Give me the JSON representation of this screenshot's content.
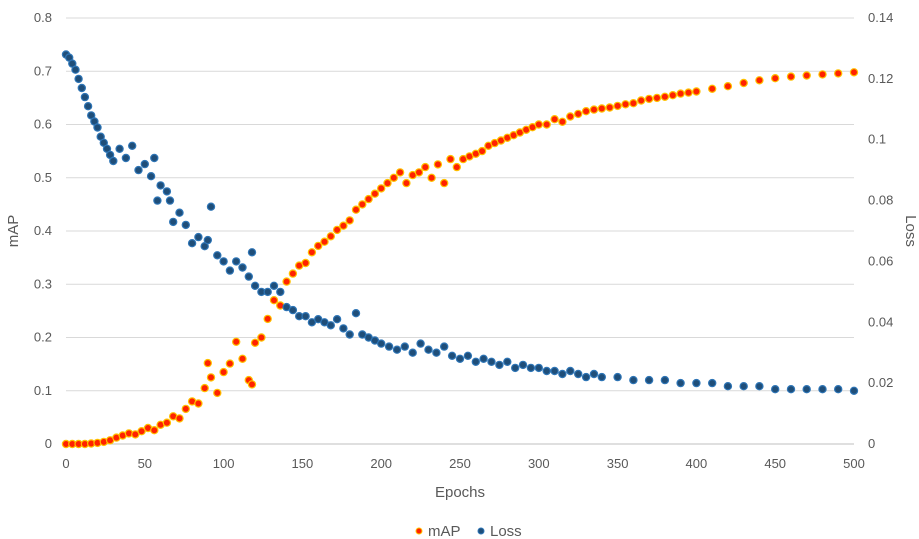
{
  "chart_data": {
    "type": "scatter",
    "xlabel": "Epochs",
    "ylabel_left": "mAP",
    "ylabel_right": "Loss",
    "x_range": [
      0,
      500
    ],
    "y_left_range": [
      0,
      0.8
    ],
    "y_right_range": [
      0,
      0.14
    ],
    "x_ticks": [
      "0",
      "50",
      "100",
      "150",
      "200",
      "250",
      "300",
      "350",
      "400",
      "450",
      "500"
    ],
    "y_left_ticks": [
      "0",
      "0.1",
      "0.2",
      "0.3",
      "0.4",
      "0.5",
      "0.6",
      "0.7",
      "0.8"
    ],
    "y_right_ticks": [
      "0",
      "0.02",
      "0.04",
      "0.06",
      "0.08",
      "0.1",
      "0.12",
      "0.14"
    ],
    "grid": "horizontal",
    "legend_position": "bottom",
    "series": [
      {
        "name": "mAP",
        "axis": "left",
        "fill_color": "#ff2200",
        "stroke_color": "#ffc000",
        "x": [
          0,
          4,
          8,
          12,
          16,
          20,
          24,
          28,
          32,
          36,
          40,
          44,
          48,
          52,
          56,
          60,
          64,
          68,
          72,
          76,
          80,
          84,
          88,
          90,
          92,
          96,
          100,
          104,
          108,
          112,
          116,
          118,
          120,
          124,
          128,
          132,
          136,
          140,
          144,
          148,
          152,
          156,
          160,
          164,
          168,
          172,
          176,
          180,
          184,
          188,
          192,
          196,
          200,
          204,
          208,
          212,
          216,
          220,
          224,
          228,
          232,
          236,
          240,
          244,
          248,
          252,
          256,
          260,
          264,
          268,
          272,
          276,
          280,
          284,
          288,
          292,
          296,
          300,
          305,
          310,
          315,
          320,
          325,
          330,
          335,
          340,
          345,
          350,
          355,
          360,
          365,
          370,
          375,
          380,
          385,
          390,
          395,
          400,
          410,
          420,
          430,
          440,
          450,
          460,
          470,
          480,
          490,
          500
        ],
        "y": [
          0,
          0,
          0,
          0,
          0.001,
          0.002,
          0.004,
          0.007,
          0.012,
          0.016,
          0.02,
          0.018,
          0.024,
          0.03,
          0.026,
          0.036,
          0.04,
          0.052,
          0.048,
          0.066,
          0.08,
          0.076,
          0.105,
          0.152,
          0.125,
          0.096,
          0.135,
          0.151,
          0.192,
          0.16,
          0.12,
          0.112,
          0.19,
          0.2,
          0.235,
          0.27,
          0.26,
          0.305,
          0.32,
          0.335,
          0.34,
          0.36,
          0.372,
          0.38,
          0.39,
          0.402,
          0.41,
          0.42,
          0.44,
          0.45,
          0.46,
          0.47,
          0.48,
          0.49,
          0.5,
          0.51,
          0.49,
          0.505,
          0.51,
          0.52,
          0.5,
          0.525,
          0.49,
          0.535,
          0.52,
          0.535,
          0.54,
          0.545,
          0.55,
          0.56,
          0.565,
          0.57,
          0.575,
          0.58,
          0.585,
          0.59,
          0.595,
          0.6,
          0.6,
          0.61,
          0.605,
          0.615,
          0.62,
          0.625,
          0.628,
          0.63,
          0.632,
          0.635,
          0.638,
          0.64,
          0.645,
          0.648,
          0.65,
          0.652,
          0.655,
          0.658,
          0.66,
          0.662,
          0.667,
          0.672,
          0.678,
          0.683,
          0.687,
          0.69,
          0.692,
          0.694,
          0.696,
          0.698
        ]
      },
      {
        "name": "Loss",
        "axis": "right",
        "fill_color": "#1f4e79",
        "stroke_color": "#2e75b6",
        "x": [
          0,
          2,
          4,
          6,
          8,
          10,
          12,
          14,
          16,
          18,
          20,
          22,
          24,
          26,
          28,
          30,
          34,
          38,
          42,
          46,
          50,
          54,
          56,
          58,
          60,
          64,
          66,
          68,
          72,
          76,
          80,
          84,
          88,
          90,
          92,
          96,
          100,
          104,
          108,
          112,
          116,
          118,
          120,
          124,
          128,
          132,
          136,
          140,
          144,
          148,
          152,
          156,
          160,
          164,
          168,
          172,
          176,
          180,
          184,
          188,
          192,
          196,
          200,
          205,
          210,
          215,
          220,
          225,
          230,
          235,
          240,
          245,
          250,
          255,
          260,
          265,
          270,
          275,
          280,
          285,
          290,
          295,
          300,
          305,
          310,
          315,
          320,
          325,
          330,
          335,
          340,
          350,
          360,
          370,
          380,
          390,
          400,
          410,
          420,
          430,
          440,
          450,
          460,
          470,
          480,
          490,
          500
        ],
        "y": [
          0.128,
          0.127,
          0.125,
          0.123,
          0.12,
          0.117,
          0.114,
          0.111,
          0.108,
          0.106,
          0.104,
          0.101,
          0.099,
          0.097,
          0.095,
          0.093,
          0.097,
          0.094,
          0.098,
          0.09,
          0.092,
          0.088,
          0.094,
          0.08,
          0.085,
          0.083,
          0.08,
          0.073,
          0.076,
          0.072,
          0.066,
          0.068,
          0.065,
          0.067,
          0.078,
          0.062,
          0.06,
          0.057,
          0.06,
          0.058,
          0.055,
          0.063,
          0.052,
          0.05,
          0.05,
          0.052,
          0.05,
          0.045,
          0.044,
          0.042,
          0.042,
          0.04,
          0.041,
          0.04,
          0.039,
          0.041,
          0.038,
          0.036,
          0.043,
          0.036,
          0.035,
          0.034,
          0.033,
          0.032,
          0.031,
          0.032,
          0.03,
          0.033,
          0.031,
          0.03,
          0.032,
          0.029,
          0.028,
          0.029,
          0.027,
          0.028,
          0.027,
          0.026,
          0.027,
          0.025,
          0.026,
          0.025,
          0.025,
          0.024,
          0.024,
          0.023,
          0.024,
          0.023,
          0.022,
          0.023,
          0.022,
          0.022,
          0.021,
          0.021,
          0.021,
          0.02,
          0.02,
          0.02,
          0.019,
          0.019,
          0.019,
          0.018,
          0.018,
          0.018,
          0.018,
          0.018,
          0.0175
        ]
      }
    ]
  }
}
